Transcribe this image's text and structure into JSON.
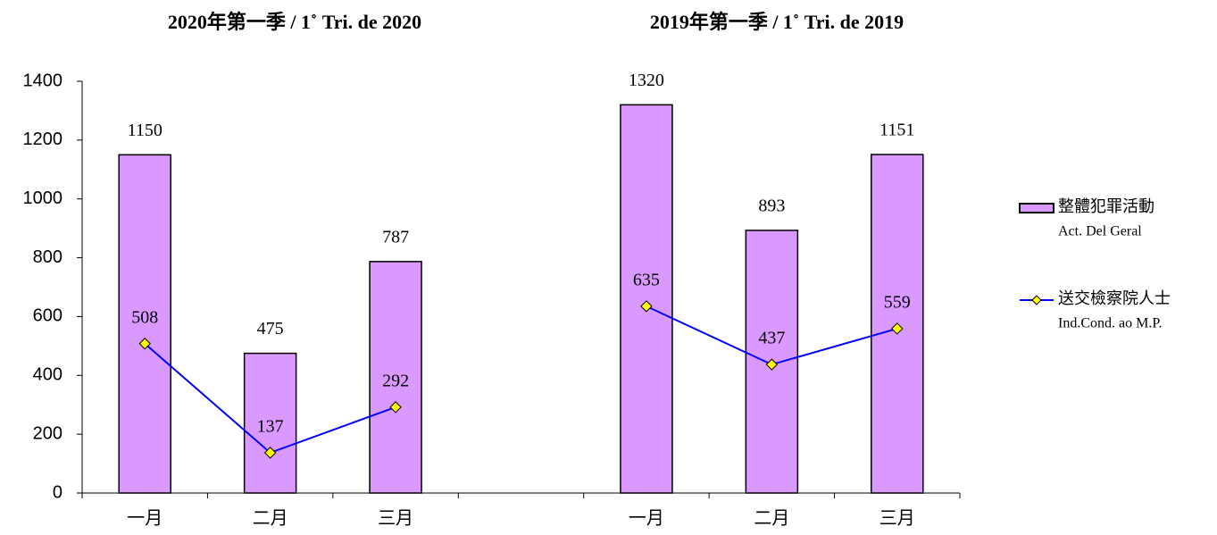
{
  "chart_data": {
    "type": "bar_line",
    "group_titles": [
      "2020年第一季 / 1˚ Tri. de 2020",
      "2019年第一季 / 1˚ Tri. de 2019"
    ],
    "categories": [
      "一月",
      "二月",
      "三月",
      null,
      "一月",
      "二月",
      "三月"
    ],
    "series": [
      {
        "name": "整體犯罪活動",
        "name_pt": "Act. Del Geral",
        "type": "bar",
        "color": "#d999ff",
        "values": [
          1150,
          475,
          787,
          null,
          1320,
          893,
          1151
        ]
      },
      {
        "name": "送交檢察院人士",
        "name_pt": "Ind.Cond. ao M.P.",
        "type": "line",
        "color": "#0000ff",
        "marker_color": "#ffff00",
        "values": [
          508,
          137,
          292,
          null,
          635,
          437,
          559
        ]
      }
    ],
    "ylim": [
      0,
      1400
    ],
    "yticks": [
      0,
      200,
      400,
      600,
      800,
      1000,
      1200,
      1400
    ],
    "legend": "right"
  }
}
